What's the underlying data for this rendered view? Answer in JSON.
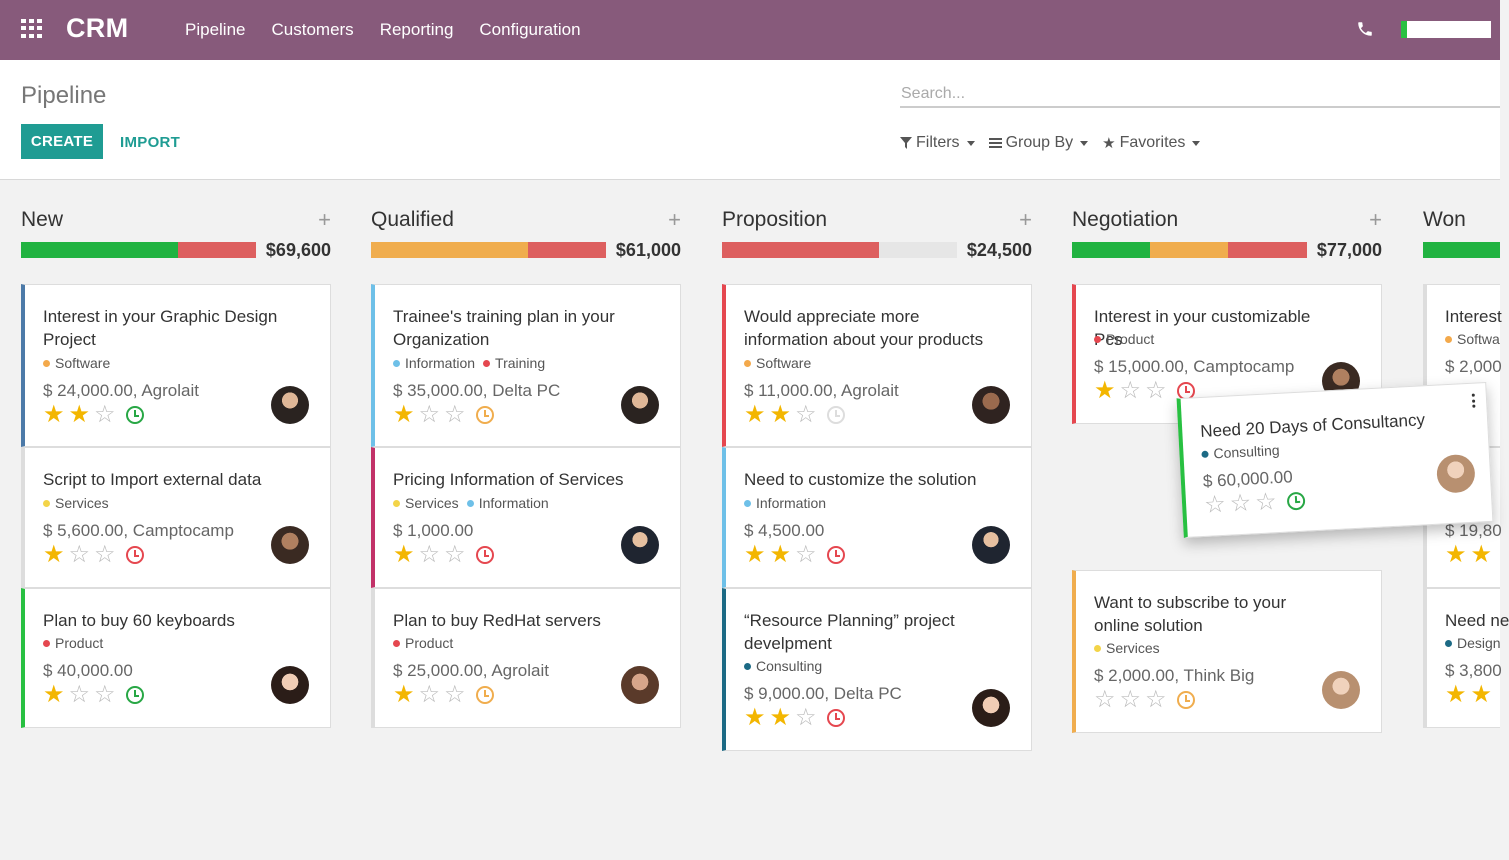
{
  "navbar": {
    "brand": "CRM",
    "menu": [
      "Pipeline",
      "Customers",
      "Reporting",
      "Configuration"
    ],
    "icons": [
      "apps-icon",
      "phone-icon"
    ],
    "accent": "#875a7b"
  },
  "control": {
    "title": "Pipeline",
    "create_label": "CREATE",
    "import_label": "IMPORT",
    "search_placeholder": "Search...",
    "filters_label": "Filters",
    "groupby_label": "Group By",
    "favorites_label": "Favorites"
  },
  "columns": [
    {
      "title": "New",
      "total": "$69,600"
    },
    {
      "title": "Qualified",
      "total": "$61,000"
    },
    {
      "title": "Proposition",
      "total": "$24,500"
    },
    {
      "title": "Negotiation",
      "total": "$77,000"
    },
    {
      "title": "Won",
      "total": ""
    }
  ],
  "cards": {
    "new": [
      {
        "title": "Interest in your Graphic Design Project",
        "tags": [
          "Software"
        ],
        "amount": "$ 24,000.00, Agrolait"
      },
      {
        "title": "Script to Import external data",
        "tags": [
          "Services"
        ],
        "amount": "$ 5,600.00, Camptocamp"
      },
      {
        "title": "Plan to buy 60 keyboards",
        "tags": [
          "Product"
        ],
        "amount": "$ 40,000.00"
      }
    ],
    "qualified": [
      {
        "title": "Trainee's training plan in your Organization",
        "tags": [
          "Information",
          "Training"
        ],
        "amount": "$ 35,000.00, Delta PC"
      },
      {
        "title": "Pricing Information of Services",
        "tags": [
          "Services",
          "Information"
        ],
        "amount": "$ 1,000.00"
      },
      {
        "title": "Plan to buy RedHat servers",
        "tags": [
          "Product"
        ],
        "amount": "$ 25,000.00, Agrolait"
      }
    ],
    "proposition": [
      {
        "title": "Would appreciate more information about your products",
        "tags": [
          "Software"
        ],
        "amount": "$ 11,000.00, Agrolait"
      },
      {
        "title": "Need to customize the solution",
        "tags": [
          "Information"
        ],
        "amount": "$ 4,500.00"
      },
      {
        "title": "“Resource Planning” project develpment",
        "tags": [
          "Consulting"
        ],
        "amount": "$ 9,000.00, Delta PC"
      }
    ],
    "negotiation": [
      {
        "title": "Interest in your customizable Pcs",
        "tags": [
          "Product"
        ],
        "amount": "$ 15,000.00, Camptocamp"
      },
      {
        "title": "Want to subscribe to your online solution",
        "tags": [
          "Services"
        ],
        "amount": "$ 2,000.00, Think Big"
      }
    ],
    "won": [
      {
        "title": "Interest",
        "tags": [
          "Softwa"
        ],
        "amount": "$ 2,000"
      },
      {
        "title": "",
        "tags": [],
        "amount": "$ 19,80"
      },
      {
        "title": "Need ne",
        "tags": [
          "Design"
        ],
        "amount": "$ 3,800"
      }
    ],
    "dragged": {
      "title": "Need 20 Days of Consultancy",
      "tags": [
        "Consulting"
      ],
      "amount": "$ 60,000.00"
    }
  }
}
